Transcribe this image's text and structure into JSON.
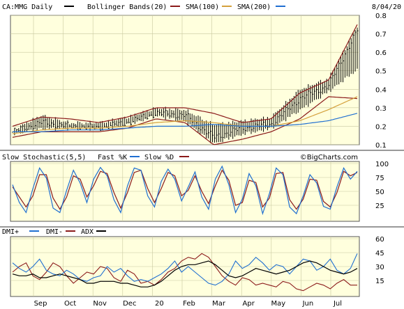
{
  "chart_data": [
    {
      "type": "line",
      "panel": "price",
      "symbol_label": "CA:MMG Daily",
      "date_label": "8/04/20",
      "legend": [
        {
          "label": "Bollinger Bands(20)",
          "color": "#000000"
        },
        {
          "label": "SMA(100)",
          "color": "#8b1a1a"
        },
        {
          "label": "SMA(200)",
          "color": "#d4a03c"
        }
      ],
      "legend_swatch_color": "#1f6fd1",
      "ylim": [
        0.1,
        0.8
      ],
      "yticks": [
        "0.8",
        "0.7",
        "0.6",
        "0.5",
        "0.4",
        "0.3",
        "0.2",
        "0.1"
      ],
      "x_month_labels": [
        "Sep",
        "Oct",
        "Nov",
        "Dec",
        "20",
        "Feb",
        "Mar",
        "Apr",
        "May",
        "Jun",
        "Jul"
      ],
      "grid": true,
      "price_series": {
        "months": [
          "Aug",
          "Sep",
          "Oct",
          "Nov",
          "Dec",
          "Jan",
          "Feb",
          "Mar",
          "Apr",
          "May",
          "Jun",
          "Jul",
          "Aug"
        ],
        "close": [
          0.17,
          0.22,
          0.2,
          0.19,
          0.22,
          0.27,
          0.26,
          0.14,
          0.19,
          0.21,
          0.35,
          0.42,
          0.72
        ],
        "high": [
          0.18,
          0.26,
          0.22,
          0.22,
          0.25,
          0.3,
          0.29,
          0.21,
          0.23,
          0.25,
          0.4,
          0.46,
          0.74
        ],
        "low": [
          0.15,
          0.18,
          0.18,
          0.18,
          0.2,
          0.25,
          0.22,
          0.1,
          0.15,
          0.18,
          0.28,
          0.38,
          0.5
        ]
      },
      "bollinger_upper": [
        0.2,
        0.25,
        0.24,
        0.22,
        0.25,
        0.3,
        0.3,
        0.27,
        0.22,
        0.24,
        0.38,
        0.45,
        0.75
      ],
      "bollinger_lower": [
        0.14,
        0.17,
        0.17,
        0.17,
        0.19,
        0.24,
        0.22,
        0.1,
        0.13,
        0.17,
        0.24,
        0.36,
        0.35
      ],
      "sma100": [
        0.16,
        0.18,
        0.19,
        0.19,
        0.2,
        0.22,
        0.23,
        0.22,
        0.2,
        0.2,
        0.23,
        0.29,
        0.36
      ],
      "sma200": [
        0.17,
        0.17,
        0.18,
        0.18,
        0.19,
        0.2,
        0.2,
        0.21,
        0.2,
        0.2,
        0.21,
        0.23,
        0.27
      ]
    },
    {
      "type": "line",
      "panel": "stochastic",
      "title": "Slow Stochastic(5,5)",
      "watermark": "©BigCharts.com",
      "legend": [
        {
          "label": "Fast %K",
          "color": "#1f6fd1"
        },
        {
          "label": "Slow %D",
          "color": "#8b1a1a"
        }
      ],
      "ylim": [
        0,
        100
      ],
      "yticks": [
        "100",
        "75",
        "50",
        "25"
      ],
      "fast_k": [
        62,
        30,
        12,
        55,
        92,
        74,
        20,
        12,
        52,
        88,
        65,
        30,
        72,
        93,
        78,
        35,
        12,
        60,
        92,
        88,
        42,
        22,
        68,
        90,
        72,
        33,
        58,
        85,
        40,
        18,
        72,
        95,
        62,
        12,
        36,
        82,
        60,
        10,
        46,
        92,
        80,
        22,
        10,
        42,
        80,
        65,
        23,
        18,
        58,
        92,
        72,
        86
      ],
      "slow_d": [
        58,
        40,
        22,
        42,
        80,
        80,
        38,
        18,
        40,
        78,
        72,
        40,
        60,
        86,
        82,
        48,
        20,
        48,
        84,
        88,
        55,
        30,
        55,
        84,
        78,
        42,
        52,
        78,
        50,
        28,
        60,
        88,
        70,
        25,
        30,
        70,
        66,
        22,
        38,
        82,
        84,
        35,
        18,
        36,
        72,
        70,
        32,
        22,
        48,
        86,
        78,
        84
      ]
    },
    {
      "type": "line",
      "panel": "dmi",
      "legend": [
        {
          "label": "DMI+",
          "color": "#1f6fd1"
        },
        {
          "label": "DMI-",
          "color": "#8b1a1a"
        },
        {
          "label": "ADX",
          "color": "#000000"
        }
      ],
      "ylim": [
        0,
        60
      ],
      "yticks": [
        "60",
        "45",
        "30",
        "15"
      ],
      "dmi_plus": [
        34,
        28,
        24,
        30,
        38,
        26,
        22,
        20,
        26,
        22,
        16,
        14,
        18,
        20,
        30,
        24,
        28,
        20,
        14,
        16,
        14,
        18,
        22,
        28,
        36,
        24,
        30,
        24,
        18,
        12,
        10,
        14,
        22,
        36,
        28,
        32,
        40,
        34,
        26,
        32,
        30,
        22,
        30,
        38,
        36,
        26,
        30,
        38,
        26,
        22,
        28,
        44
      ],
      "dmi_minus": [
        24,
        30,
        34,
        20,
        16,
        24,
        34,
        30,
        20,
        12,
        18,
        24,
        22,
        30,
        28,
        18,
        14,
        26,
        22,
        12,
        14,
        10,
        16,
        24,
        28,
        36,
        40,
        38,
        44,
        40,
        30,
        20,
        14,
        10,
        18,
        16,
        10,
        12,
        10,
        8,
        14,
        12,
        6,
        4,
        8,
        12,
        10,
        6,
        12,
        16,
        10,
        10
      ],
      "adx": [
        22,
        20,
        20,
        22,
        18,
        18,
        20,
        22,
        20,
        18,
        16,
        12,
        12,
        14,
        14,
        14,
        12,
        12,
        10,
        8,
        8,
        10,
        14,
        20,
        26,
        30,
        32,
        32,
        34,
        36,
        32,
        26,
        20,
        18,
        20,
        24,
        28,
        26,
        24,
        22,
        24,
        26,
        30,
        34,
        36,
        34,
        30,
        26,
        24,
        22,
        24,
        28
      ]
    }
  ]
}
